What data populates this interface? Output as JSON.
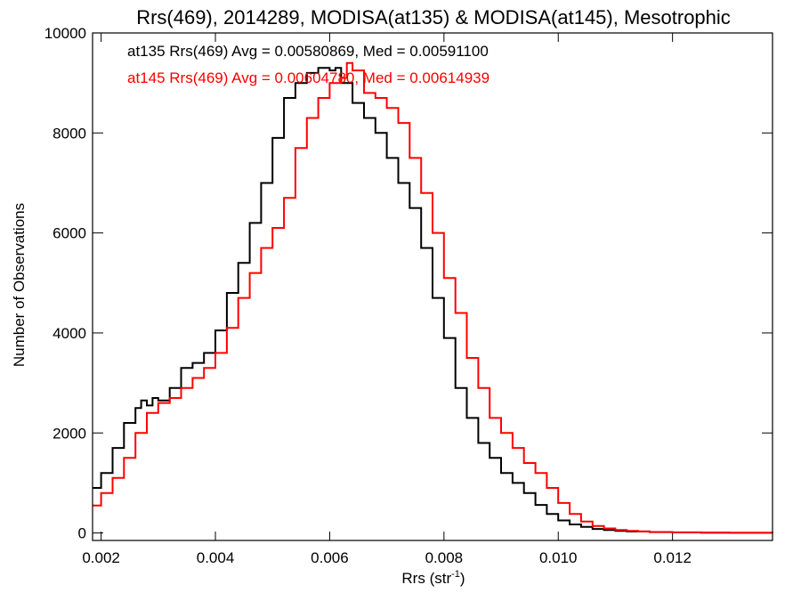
{
  "chart_data": {
    "type": "line",
    "title": "Rrs(469), 2014289, MODISA(at135) & MODISA(at145), Mesotrophic",
    "xlabel": "Rrs (str",
    "xlabel_sup": "-1",
    "xlabel_close": ")",
    "ylabel": "Number of Observations",
    "xlim": [
      0.00185,
      0.01375
    ],
    "ylim": [
      -150,
      10000
    ],
    "xticks": [
      0.002,
      0.004,
      0.006,
      0.008,
      0.01,
      0.012
    ],
    "xtick_labels": [
      "0.002",
      "0.004",
      "0.006",
      "0.008",
      "0.010",
      "0.012"
    ],
    "yticks": [
      0,
      2000,
      4000,
      6000,
      8000,
      10000
    ],
    "ytick_labels": [
      "0",
      "2000",
      "4000",
      "6000",
      "8000",
      "10000"
    ],
    "grid": false,
    "legend_position": "top-left",
    "series": [
      {
        "name": "at135",
        "color": "#000000",
        "annotation": "at135 Rrs(469) Avg = 0.00580869, Med = 0.00591100",
        "x": [
          0.00185,
          0.002,
          0.0022,
          0.0024,
          0.0026,
          0.0027,
          0.0028,
          0.0029,
          0.003,
          0.0032,
          0.0034,
          0.0036,
          0.0038,
          0.004,
          0.0042,
          0.0044,
          0.0046,
          0.0048,
          0.005,
          0.0052,
          0.0054,
          0.0056,
          0.0058,
          0.006,
          0.0061,
          0.0062,
          0.0064,
          0.0066,
          0.0068,
          0.007,
          0.0072,
          0.0074,
          0.0076,
          0.0078,
          0.008,
          0.0082,
          0.0084,
          0.0086,
          0.0088,
          0.009,
          0.0092,
          0.0094,
          0.0096,
          0.0098,
          0.01,
          0.0102,
          0.0104,
          0.0106,
          0.0108,
          0.011,
          0.0112,
          0.0116,
          0.012,
          0.0125,
          0.013,
          0.01375
        ],
        "y": [
          900,
          1200,
          1700,
          2200,
          2500,
          2650,
          2550,
          2700,
          2650,
          2900,
          3300,
          3400,
          3600,
          4050,
          4800,
          5400,
          6200,
          7000,
          7900,
          8700,
          9000,
          9200,
          9300,
          9250,
          9300,
          9000,
          8600,
          8300,
          8000,
          7500,
          7000,
          6500,
          5700,
          4700,
          3900,
          2900,
          2300,
          1800,
          1500,
          1200,
          1000,
          800,
          560,
          380,
          250,
          170,
          120,
          80,
          60,
          40,
          30,
          18,
          10,
          6,
          3,
          0
        ]
      },
      {
        "name": "at145",
        "color": "#ff0000",
        "annotation": "at145 Rrs(469) Avg = 0.00604780, Med = 0.00614939",
        "x": [
          0.00185,
          0.002,
          0.0022,
          0.0024,
          0.0026,
          0.0028,
          0.003,
          0.0032,
          0.0034,
          0.0036,
          0.0038,
          0.004,
          0.0042,
          0.0044,
          0.0046,
          0.0048,
          0.005,
          0.0052,
          0.0054,
          0.0056,
          0.0058,
          0.006,
          0.0062,
          0.0063,
          0.0064,
          0.0066,
          0.0068,
          0.007,
          0.0072,
          0.0074,
          0.0076,
          0.0078,
          0.008,
          0.0082,
          0.0084,
          0.0086,
          0.0088,
          0.009,
          0.0092,
          0.0094,
          0.0096,
          0.0098,
          0.01,
          0.0102,
          0.0104,
          0.0106,
          0.0108,
          0.011,
          0.0112,
          0.0114,
          0.0116,
          0.012,
          0.0125,
          0.013,
          0.01375
        ],
        "y": [
          550,
          800,
          1100,
          1500,
          2000,
          2400,
          2600,
          2700,
          2900,
          3100,
          3300,
          3600,
          4100,
          4700,
          5200,
          5700,
          6100,
          6700,
          7700,
          8300,
          8700,
          9000,
          9100,
          9400,
          9250,
          8800,
          8700,
          8500,
          8200,
          7500,
          6800,
          6000,
          5100,
          4400,
          3500,
          2900,
          2300,
          2000,
          1700,
          1400,
          1200,
          900,
          600,
          380,
          230,
          140,
          90,
          60,
          40,
          30,
          20,
          12,
          7,
          4,
          0
        ]
      }
    ]
  }
}
